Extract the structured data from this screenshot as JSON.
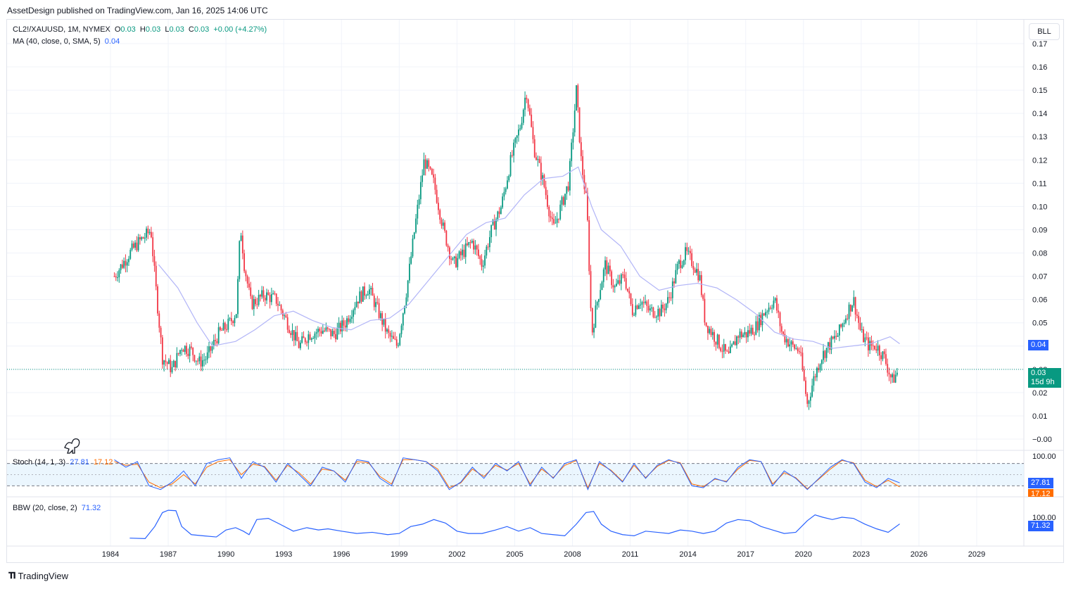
{
  "header": {
    "published": "AssetDesign published on TradingView.com, Jan 16, 2025 14:06 UTC"
  },
  "legend": {
    "symbol": "CL2!/XAUUSD, 1M, NYMEX",
    "o_label": "O",
    "o": "0.03",
    "h_label": "H",
    "h": "0.03",
    "l_label": "L",
    "l": "0.03",
    "c_label": "C",
    "c": "0.03",
    "change": "+0.00 (+4.27%)",
    "ma_label": "MA (40, close, 0, SMA, 5)",
    "ma_value": "0.04",
    "stoch_label": "Stoch (14, 1, 3)",
    "stoch_k": "27.81",
    "stoch_d": "17.12",
    "bbw_label": "BBW (20, close, 2)",
    "bbw_value": "71.32"
  },
  "toolbar": {
    "mode_label": "BLL"
  },
  "price_tags": {
    "ma": "0.04",
    "last": "0.03",
    "countdown": "15d 9h",
    "stoch_k": "27.81",
    "stoch_d": "17.12",
    "bbw": "71.32"
  },
  "footer": {
    "brand": "TradingView"
  },
  "colors": {
    "up": "#089981",
    "down": "#f23645",
    "ma": "#b2b5f7",
    "stoch_k": "#2962ff",
    "stoch_d": "#ff6d00",
    "bbw": "#2962ff",
    "band": "#e3f2fd"
  },
  "chart_data": [
    {
      "type": "candlestick",
      "symbol": "CL2!/XAUUSD",
      "interval": "1M",
      "y_ticks": [
        "0.17",
        "0.16",
        "0.15",
        "0.14",
        "0.13",
        "0.12",
        "0.11",
        "0.10",
        "0.09",
        "0.08",
        "0.07",
        "0.06",
        "0.05",
        "0.04",
        "0.03",
        "0.02",
        "0.01",
        "−0.00"
      ],
      "x_ticks": [
        "1984",
        "1987",
        "1990",
        "1993",
        "1996",
        "1999",
        "2002",
        "2005",
        "2008",
        "2011",
        "2014",
        "2017",
        "2020",
        "2023",
        "2026",
        "2029"
      ],
      "ylim": [
        0.0,
        0.17
      ],
      "close_anchors": {
        "x": [
          1984.2,
          1984.6,
          1985.0,
          1985.5,
          1985.9,
          1986.1,
          1986.3,
          1986.7,
          1987.2,
          1987.7,
          1988.2,
          1988.6,
          1989.0,
          1989.6,
          1990.2,
          1990.55,
          1990.75,
          1990.95,
          1991.3,
          1992.0,
          1992.6,
          1993.2,
          1993.8,
          1994.3,
          1995.0,
          1995.6,
          1996.2,
          1996.8,
          1997.4,
          1997.9,
          1998.4,
          1998.9,
          1999.4,
          1999.8,
          2000.3,
          2000.8,
          2001.3,
          2001.8,
          2002.3,
          2002.8,
          2003.3,
          2003.8,
          2004.3,
          2004.8,
          2005.3,
          2005.6,
          2006.0,
          2006.5,
          2007.0,
          2007.4,
          2007.8,
          2008.2,
          2008.45,
          2008.75,
          2009.0,
          2009.3,
          2009.7,
          2010.2,
          2010.7,
          2011.1,
          2011.5,
          2012.0,
          2012.6,
          2013.0,
          2013.5,
          2013.9,
          2014.3,
          2014.6,
          2014.9,
          2015.3,
          2015.7,
          2016.1,
          2016.6,
          2017.0,
          2017.5,
          2018.0,
          2018.5,
          2018.9,
          2019.4,
          2019.8,
          2020.2,
          2020.5,
          2020.9,
          2021.3,
          2021.8,
          2022.3,
          2022.6,
          2023.0,
          2023.4,
          2023.8,
          2024.2,
          2024.6,
          2024.9
        ],
        "close": [
          0.07,
          0.075,
          0.08,
          0.085,
          0.088,
          0.09,
          0.07,
          0.035,
          0.03,
          0.04,
          0.038,
          0.033,
          0.035,
          0.045,
          0.05,
          0.055,
          0.092,
          0.075,
          0.058,
          0.062,
          0.06,
          0.05,
          0.04,
          0.045,
          0.047,
          0.045,
          0.05,
          0.06,
          0.065,
          0.055,
          0.045,
          0.04,
          0.065,
          0.09,
          0.12,
          0.11,
          0.09,
          0.075,
          0.08,
          0.085,
          0.075,
          0.09,
          0.1,
          0.12,
          0.135,
          0.15,
          0.125,
          0.11,
          0.09,
          0.1,
          0.11,
          0.15,
          0.12,
          0.1,
          0.045,
          0.06,
          0.075,
          0.065,
          0.07,
          0.055,
          0.06,
          0.055,
          0.055,
          0.06,
          0.075,
          0.08,
          0.075,
          0.07,
          0.05,
          0.045,
          0.04,
          0.035,
          0.045,
          0.045,
          0.048,
          0.055,
          0.06,
          0.045,
          0.04,
          0.038,
          0.015,
          0.025,
          0.035,
          0.04,
          0.045,
          0.055,
          0.06,
          0.045,
          0.04,
          0.04,
          0.035,
          0.025,
          0.029
        ]
      },
      "last_price": 0.03
    },
    {
      "type": "line",
      "name": "MA (40, close, 0, SMA, 5)",
      "x": [
        1986.5,
        1987.5,
        1988.5,
        1989.3,
        1990.5,
        1991.5,
        1992.5,
        1993.5,
        1994.5,
        1995.5,
        1996.5,
        1997.5,
        1998.5,
        1999.5,
        2000.5,
        2001.5,
        2002.5,
        2003.5,
        2004.5,
        2005.5,
        2006.5,
        2007.5,
        2008.3,
        2009.0,
        2009.5,
        2010.5,
        2011.5,
        2012.5,
        2013.5,
        2014.5,
        2015.5,
        2016.5,
        2017.5,
        2018.5,
        2019.5,
        2020.5,
        2021.5,
        2022.5,
        2023.5,
        2024.5,
        2025.0
      ],
      "y": [
        0.075,
        0.065,
        0.05,
        0.04,
        0.042,
        0.047,
        0.053,
        0.055,
        0.051,
        0.048,
        0.047,
        0.051,
        0.052,
        0.058,
        0.068,
        0.078,
        0.088,
        0.093,
        0.095,
        0.105,
        0.112,
        0.113,
        0.117,
        0.1,
        0.09,
        0.083,
        0.07,
        0.064,
        0.066,
        0.067,
        0.065,
        0.06,
        0.054,
        0.046,
        0.043,
        0.042,
        0.039,
        0.04,
        0.041,
        0.044,
        0.041
      ]
    },
    {
      "type": "line",
      "name": "Stoch (14, 1, 3)",
      "ylim": [
        0,
        100
      ],
      "bands": [
        20,
        80
      ],
      "y_ticks": [
        "100.00"
      ],
      "x": [
        1984.2,
        1984.8,
        1985.4,
        1986.0,
        1986.6,
        1987.2,
        1987.8,
        1988.4,
        1989.0,
        1989.6,
        1990.2,
        1990.8,
        1991.4,
        1992.0,
        1992.6,
        1993.2,
        1993.8,
        1994.4,
        1995.0,
        1995.6,
        1996.2,
        1996.8,
        1997.4,
        1998.0,
        1998.6,
        1999.2,
        1999.8,
        2000.4,
        2001.0,
        2001.6,
        2002.2,
        2002.8,
        2003.4,
        2004.0,
        2004.6,
        2005.2,
        2005.8,
        2006.4,
        2007.0,
        2007.6,
        2008.2,
        2008.8,
        2009.4,
        2010.0,
        2010.6,
        2011.2,
        2011.8,
        2012.4,
        2013.0,
        2013.6,
        2014.2,
        2014.8,
        2015.4,
        2016.0,
        2016.6,
        2017.2,
        2017.8,
        2018.4,
        2019.0,
        2019.6,
        2020.2,
        2020.8,
        2021.4,
        2022.0,
        2022.6,
        2023.2,
        2023.8,
        2024.4,
        2025.0
      ],
      "k": [
        90,
        70,
        85,
        20,
        10,
        30,
        60,
        20,
        80,
        90,
        95,
        40,
        85,
        70,
        30,
        80,
        50,
        20,
        70,
        60,
        30,
        90,
        85,
        40,
        20,
        95,
        90,
        85,
        60,
        10,
        30,
        70,
        40,
        80,
        60,
        85,
        20,
        70,
        40,
        80,
        90,
        10,
        85,
        60,
        30,
        80,
        40,
        75,
        90,
        80,
        20,
        15,
        40,
        30,
        70,
        90,
        85,
        20,
        60,
        40,
        10,
        40,
        70,
        90,
        80,
        30,
        15,
        40,
        28
      ],
      "d": [
        85,
        75,
        78,
        30,
        15,
        25,
        50,
        25,
        70,
        85,
        90,
        50,
        78,
        72,
        35,
        75,
        55,
        25,
        65,
        60,
        35,
        85,
        82,
        45,
        25,
        90,
        90,
        85,
        65,
        15,
        28,
        65,
        45,
        75,
        62,
        80,
        25,
        65,
        42,
        75,
        88,
        15,
        80,
        62,
        32,
        75,
        42,
        72,
        88,
        82,
        25,
        18,
        38,
        32,
        65,
        88,
        85,
        25,
        55,
        42,
        12,
        38,
        65,
        88,
        82,
        35,
        18,
        35,
        17
      ]
    },
    {
      "type": "line",
      "name": "BBW (20, close, 2)",
      "y_ticks": [
        "100.00"
      ],
      "x": [
        1985.0,
        1985.8,
        1986.3,
        1986.7,
        1987.0,
        1987.4,
        1987.7,
        1988.2,
        1988.8,
        1989.5,
        1990.0,
        1990.5,
        1990.9,
        1991.2,
        1991.6,
        1992.2,
        1992.8,
        1993.5,
        1994.2,
        1994.8,
        1995.3,
        1996.0,
        1996.8,
        1997.6,
        1998.4,
        1999.0,
        1999.6,
        2000.2,
        2000.8,
        2001.4,
        2002.0,
        2002.6,
        2003.3,
        2004.0,
        2004.6,
        2005.2,
        2005.8,
        2006.4,
        2007.0,
        2007.6,
        2008.2,
        2008.7,
        2009.1,
        2009.5,
        2010.0,
        2010.6,
        2011.2,
        2011.8,
        2012.4,
        2013.0,
        2013.6,
        2014.2,
        2014.8,
        2015.4,
        2016.0,
        2016.6,
        2017.2,
        2017.8,
        2018.4,
        2019.0,
        2019.6,
        2020.2,
        2020.6,
        2021.0,
        2021.5,
        2022.0,
        2022.6,
        2023.2,
        2023.8,
        2024.4,
        2025.0
      ],
      "y": [
        10,
        8,
        60,
        120,
        130,
        128,
        60,
        25,
        20,
        15,
        45,
        55,
        40,
        25,
        90,
        95,
        70,
        40,
        55,
        45,
        50,
        40,
        30,
        35,
        25,
        30,
        60,
        70,
        90,
        75,
        40,
        30,
        30,
        45,
        60,
        40,
        55,
        30,
        25,
        20,
        70,
        120,
        125,
        70,
        40,
        25,
        20,
        40,
        35,
        30,
        45,
        40,
        30,
        40,
        75,
        90,
        85,
        60,
        45,
        30,
        35,
        85,
        110,
        100,
        90,
        100,
        95,
        70,
        50,
        35,
        71
      ]
    }
  ]
}
